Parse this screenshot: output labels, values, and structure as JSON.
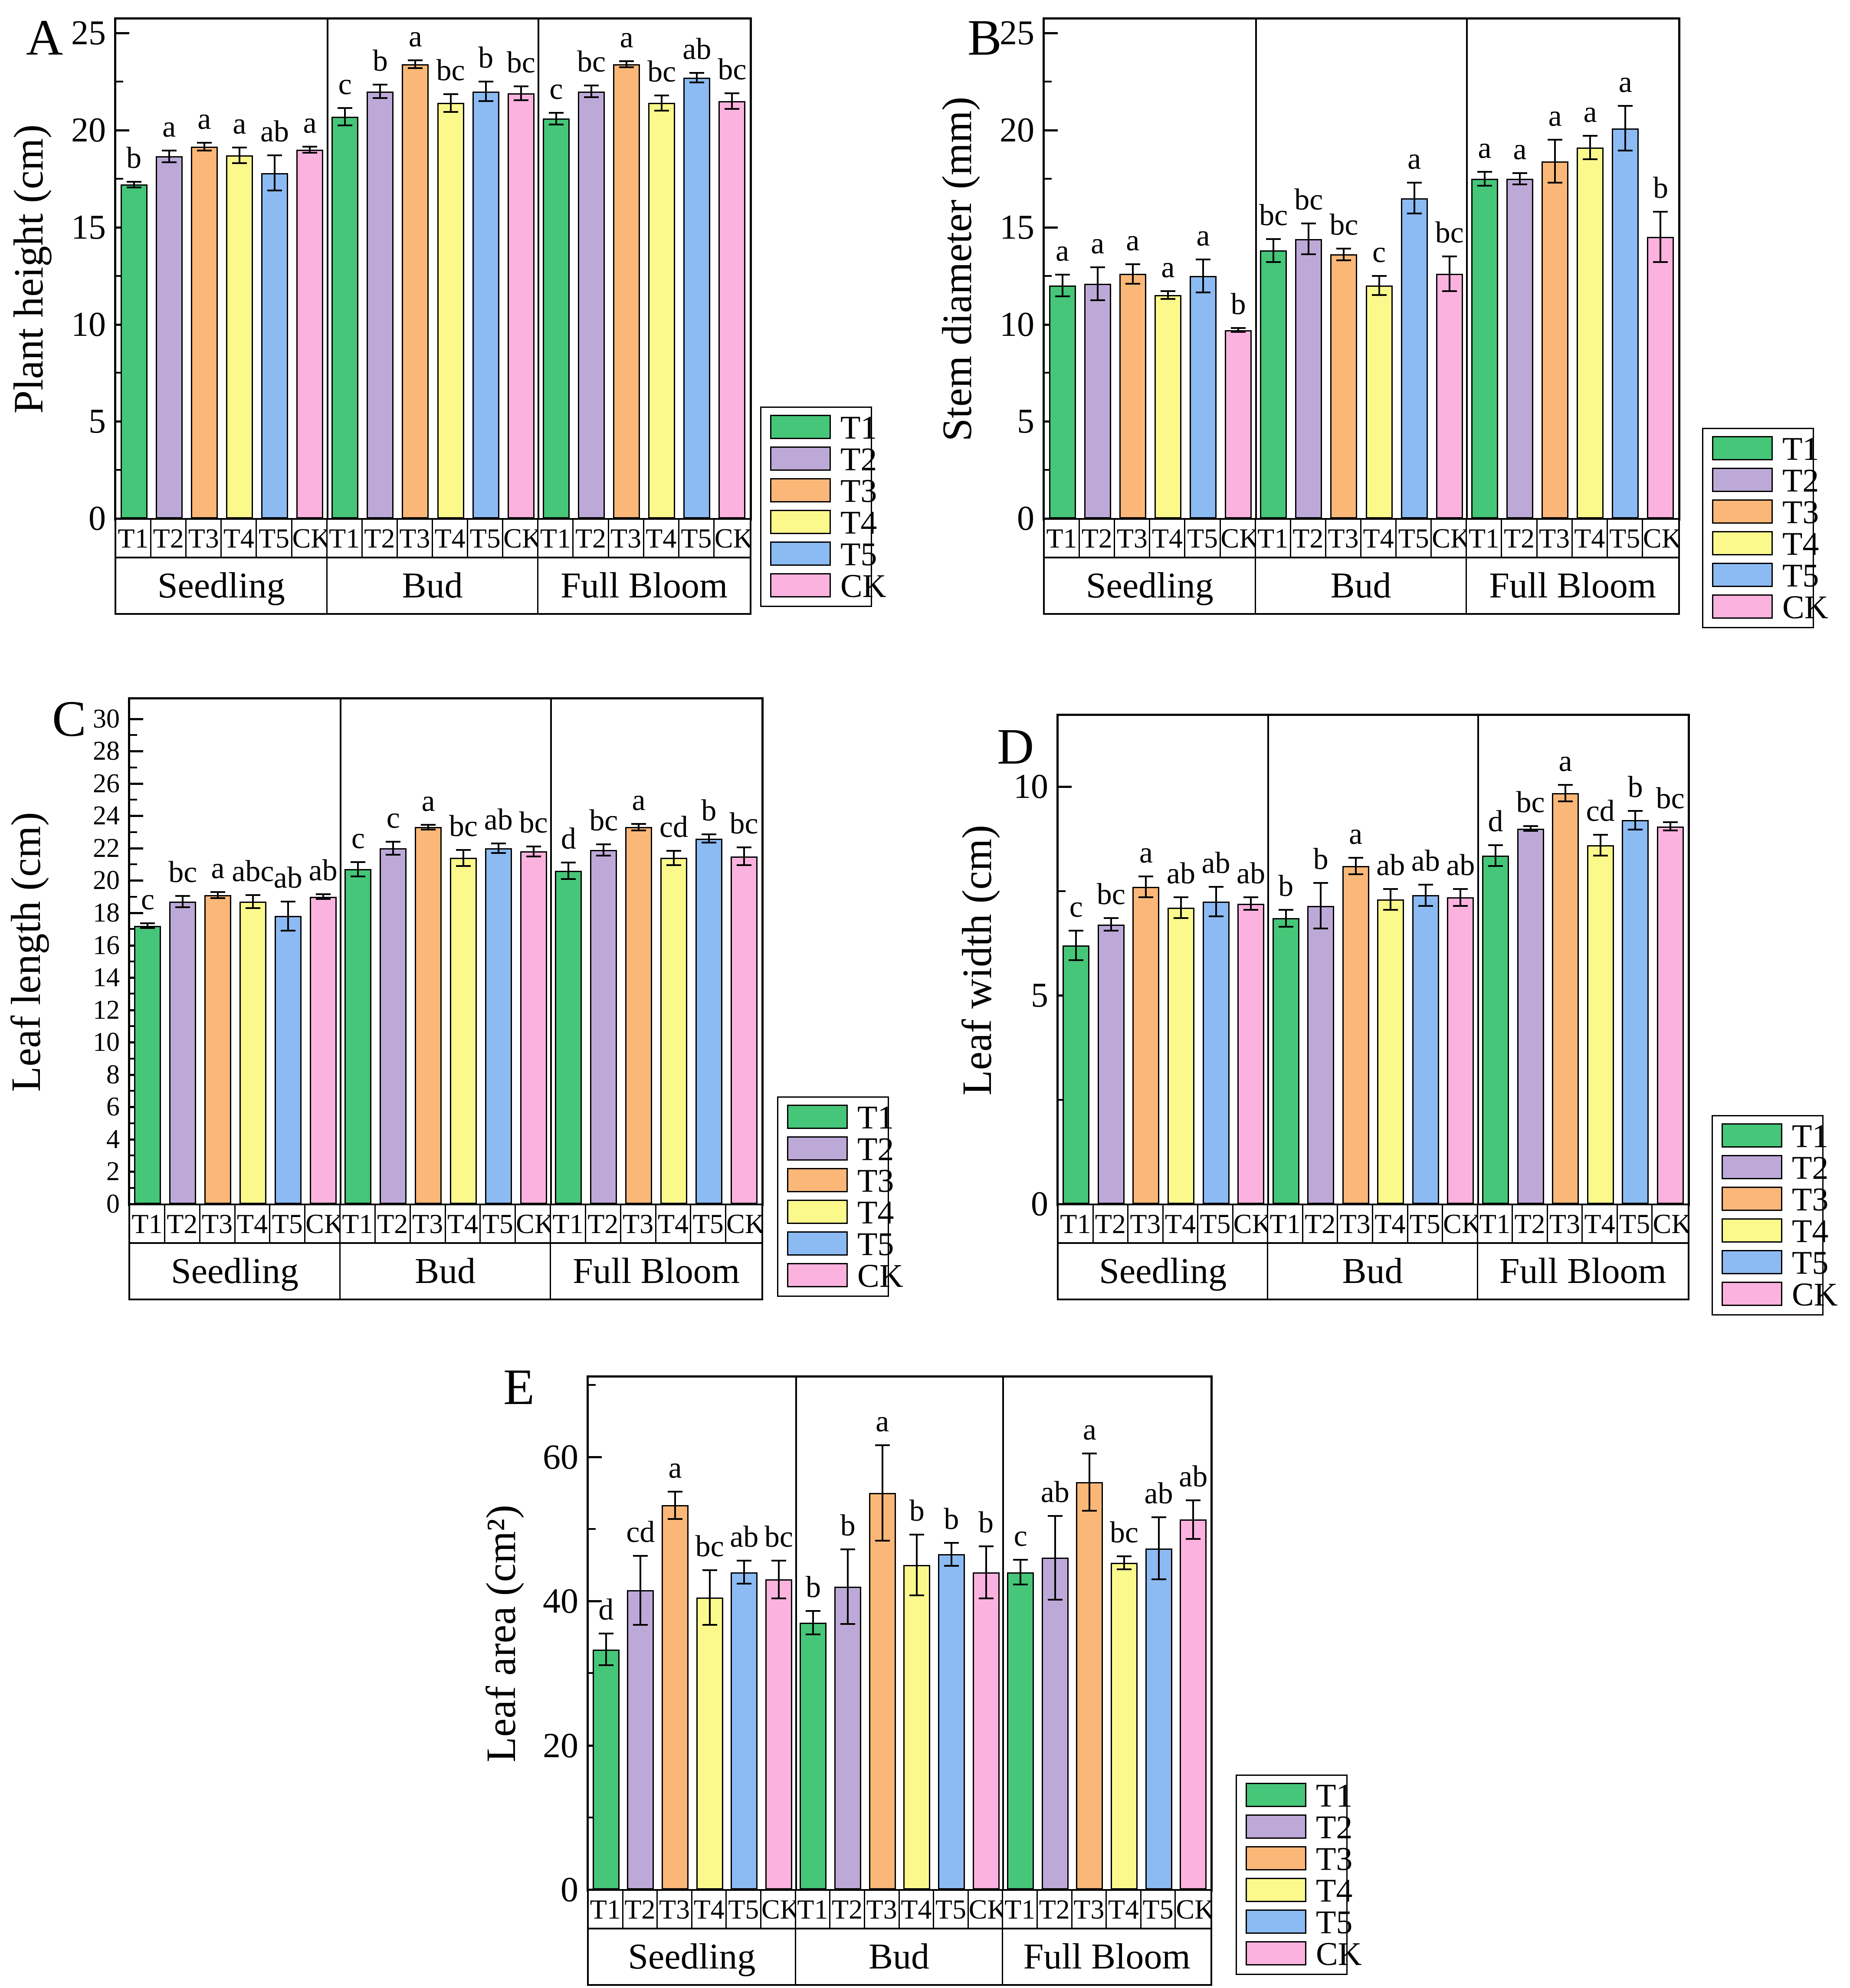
{
  "figure": {
    "legend": {
      "labels": [
        "T1",
        "T2",
        "T3",
        "T4",
        "T5",
        "CK"
      ]
    },
    "colors": {
      "T1": "#45c678",
      "T2": "#bda9d7",
      "T3": "#fbb778",
      "T4": "#fbf98c",
      "T5": "#8cbaf3",
      "CK": "#fcb2de",
      "axis": "#000000",
      "background": "#ffffff"
    },
    "group_labels": [
      "Seedling",
      "Bud",
      "Full Bloom"
    ]
  },
  "chart_data": [
    {
      "type": "bar",
      "panel": "A",
      "title": "",
      "ylabel": "Plant height (cm)",
      "categories": [
        "T1",
        "T2",
        "T3",
        "T4",
        "T5",
        "CK"
      ],
      "groups": [
        "Seedling",
        "Bud",
        "Full Bloom"
      ],
      "ylim": [
        0,
        25.7
      ],
      "yticks": [
        0,
        5,
        10,
        15,
        20,
        25
      ],
      "minor_step": 2.5,
      "grid": false,
      "legend_position": "right-bottom",
      "series": [
        {
          "group": "Seedling",
          "values": [
            17.2,
            18.65,
            19.15,
            18.7,
            17.8,
            19.0
          ],
          "errors": [
            0.15,
            0.3,
            0.2,
            0.4,
            0.9,
            0.15
          ],
          "letters": [
            "b",
            "a",
            "a",
            "a",
            "ab",
            "a"
          ]
        },
        {
          "group": "Bud",
          "values": [
            20.7,
            22.0,
            23.4,
            21.4,
            22.0,
            21.9
          ],
          "errors": [
            0.45,
            0.35,
            0.2,
            0.45,
            0.5,
            0.35
          ],
          "letters": [
            "c",
            "b",
            "a",
            "bc",
            "b",
            "bc"
          ]
        },
        {
          "group": "Full Bloom",
          "values": [
            20.6,
            22.0,
            23.4,
            21.4,
            22.7,
            21.5
          ],
          "errors": [
            0.3,
            0.3,
            0.15,
            0.4,
            0.25,
            0.4
          ],
          "letters": [
            "c",
            "bc",
            "a",
            "bc",
            "ab",
            "bc"
          ]
        }
      ]
    },
    {
      "type": "bar",
      "panel": "B",
      "title": "",
      "ylabel": "Stem diameter (mm)",
      "categories": [
        "T1",
        "T2",
        "T3",
        "T4",
        "T5",
        "CK"
      ],
      "groups": [
        "Seedling",
        "Bud",
        "Full Bloom"
      ],
      "ylim": [
        0,
        25.7
      ],
      "yticks": [
        0,
        5,
        10,
        15,
        20,
        25
      ],
      "minor_step": 2.5,
      "grid": false,
      "legend_position": "right-bottom",
      "series": [
        {
          "group": "Seedling",
          "values": [
            12.0,
            12.1,
            12.6,
            11.5,
            12.5,
            9.7
          ],
          "errors": [
            0.55,
            0.85,
            0.5,
            0.2,
            0.85,
            0.1
          ],
          "letters": [
            "a",
            "a",
            "a",
            "a",
            "a",
            "b"
          ]
        },
        {
          "group": "Bud",
          "values": [
            13.8,
            14.4,
            13.6,
            12.0,
            16.5,
            12.6
          ],
          "errors": [
            0.6,
            0.8,
            0.3,
            0.5,
            0.8,
            0.9
          ],
          "letters": [
            "bc",
            "bc",
            "bc",
            "c",
            "a",
            "bc"
          ]
        },
        {
          "group": "Full Bloom",
          "values": [
            17.5,
            17.5,
            18.4,
            19.1,
            20.1,
            14.5
          ],
          "errors": [
            0.35,
            0.3,
            1.1,
            0.6,
            1.15,
            1.3
          ],
          "letters": [
            "a",
            "a",
            "a",
            "a",
            "a",
            "b"
          ]
        }
      ]
    },
    {
      "type": "bar",
      "panel": "C",
      "title": "",
      "ylabel": "Leaf length (cm)",
      "categories": [
        "T1",
        "T2",
        "T3",
        "T4",
        "T5",
        "CK"
      ],
      "groups": [
        "Seedling",
        "Bud",
        "Full Bloom"
      ],
      "ylim": [
        0,
        31.2
      ],
      "yticks": [
        0,
        2,
        4,
        6,
        8,
        10,
        12,
        14,
        16,
        18,
        20,
        22,
        24,
        26,
        28,
        30
      ],
      "minor_step": 1,
      "grid": false,
      "legend_position": "right-bottom",
      "series": [
        {
          "group": "Seedling",
          "values": [
            17.2,
            18.7,
            19.1,
            18.7,
            17.8,
            19.0
          ],
          "errors": [
            0.15,
            0.35,
            0.2,
            0.4,
            0.9,
            0.15
          ],
          "letters": [
            "c",
            "bc",
            "a",
            "abc",
            "ab",
            "ab"
          ]
        },
        {
          "group": "Bud",
          "values": [
            20.7,
            22.0,
            23.3,
            21.4,
            22.0,
            21.8
          ],
          "errors": [
            0.45,
            0.4,
            0.15,
            0.5,
            0.3,
            0.3
          ],
          "letters": [
            "c",
            "c",
            "a",
            "bc",
            "ab",
            "bc"
          ]
        },
        {
          "group": "Full Bloom",
          "values": [
            20.6,
            21.9,
            23.3,
            21.4,
            22.6,
            21.5
          ],
          "errors": [
            0.5,
            0.35,
            0.2,
            0.45,
            0.25,
            0.55
          ],
          "letters": [
            "d",
            "bc",
            "a",
            "cd",
            "b",
            "bc"
          ]
        }
      ]
    },
    {
      "type": "bar",
      "panel": "D",
      "title": "",
      "ylabel": "Leaf width (cm)",
      "categories": [
        "T1",
        "T2",
        "T3",
        "T4",
        "T5",
        "CK"
      ],
      "groups": [
        "Seedling",
        "Bud",
        "Full Bloom"
      ],
      "ylim": [
        0,
        11.7
      ],
      "yticks": [
        0,
        5,
        10
      ],
      "minor_step": 2.5,
      "grid": false,
      "legend_position": "right-bottom",
      "series": [
        {
          "group": "Seedling",
          "values": [
            6.2,
            6.7,
            7.6,
            7.1,
            7.25,
            7.2
          ],
          "errors": [
            0.35,
            0.15,
            0.25,
            0.25,
            0.35,
            0.15
          ],
          "letters": [
            "c",
            "bc",
            "a",
            "ab",
            "ab",
            "ab"
          ]
        },
        {
          "group": "Bud",
          "values": [
            6.85,
            7.15,
            8.1,
            7.3,
            7.4,
            7.35
          ],
          "errors": [
            0.2,
            0.55,
            0.2,
            0.25,
            0.25,
            0.2
          ],
          "letters": [
            "b",
            "b",
            "a",
            "ab",
            "ab",
            "ab"
          ]
        },
        {
          "group": "Full Bloom",
          "values": [
            8.35,
            9.0,
            9.85,
            8.6,
            9.2,
            9.05
          ],
          "errors": [
            0.25,
            0.06,
            0.2,
            0.25,
            0.22,
            0.1
          ],
          "letters": [
            "d",
            "bc",
            "a",
            "cd",
            "b",
            "bc"
          ]
        }
      ]
    },
    {
      "type": "bar",
      "panel": "E",
      "title": "",
      "ylabel": "Leaf area (cm²)",
      "categories": [
        "T1",
        "T2",
        "T3",
        "T4",
        "T5",
        "CK"
      ],
      "groups": [
        "Seedling",
        "Bud",
        "Full Bloom"
      ],
      "ylim": [
        0,
        71
      ],
      "yticks": [
        0,
        20,
        40,
        60
      ],
      "minor_step": 10,
      "grid": false,
      "legend_position": "right-bottom",
      "series": [
        {
          "group": "Seedling",
          "values": [
            33.3,
            41.5,
            53.3,
            40.5,
            44.0,
            43.0
          ],
          "errors": [
            2.2,
            4.8,
            1.9,
            3.8,
            1.6,
            2.6
          ],
          "letters": [
            "d",
            "cd",
            "a",
            "bc",
            "ab",
            "bc"
          ]
        },
        {
          "group": "Bud",
          "values": [
            37.0,
            42.0,
            55.0,
            45.0,
            46.5,
            44.0
          ],
          "errors": [
            1.6,
            5.2,
            6.6,
            4.2,
            1.6,
            3.6
          ],
          "letters": [
            "b",
            "b",
            "a",
            "b",
            "b",
            "b"
          ]
        },
        {
          "group": "Full Bloom",
          "values": [
            44.0,
            46.0,
            56.5,
            45.3,
            47.3,
            51.3
          ],
          "errors": [
            1.7,
            5.8,
            4.0,
            0.9,
            4.3,
            2.7
          ],
          "letters": [
            "c",
            "ab",
            "a",
            "bc",
            "ab",
            "ab"
          ]
        }
      ]
    }
  ]
}
